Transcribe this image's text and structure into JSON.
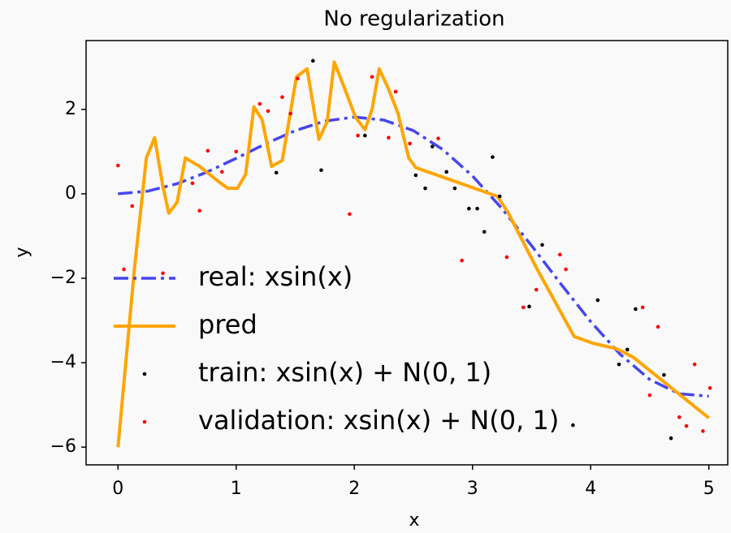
{
  "chart_data": {
    "type": "line",
    "title": "No regularization",
    "xlabel": "x",
    "ylabel": "y",
    "xlim": [
      -0.27,
      5.16
    ],
    "ylim": [
      -6.42,
      3.63
    ],
    "xticks": [
      0,
      1,
      2,
      3,
      4,
      5
    ],
    "yticks": [
      {
        "value": -6,
        "label": "−6"
      },
      {
        "value": -4,
        "label": "−4"
      },
      {
        "value": -2,
        "label": "−2"
      },
      0,
      2
    ],
    "grid": false,
    "legend": "lower left",
    "series": [
      {
        "name": "real: xsin(x)",
        "color": "#4545f0",
        "style": "dash-dot",
        "x": [
          0,
          0.25,
          0.5,
          0.75,
          1,
          1.25,
          1.5,
          1.75,
          2,
          2.25,
          2.5,
          2.75,
          3,
          3.25,
          3.5,
          3.75,
          4,
          4.25,
          4.5,
          4.75,
          5
        ],
        "values": [
          0,
          0.0619,
          0.2397,
          0.5112,
          0.8415,
          1.1862,
          1.4962,
          1.7219,
          1.8186,
          1.7474,
          1.4962,
          1.0459,
          0.4234,
          -0.3523,
          -1.2277,
          -2.1436,
          -3.0272,
          -3.8027,
          -4.3988,
          -4.7367,
          -4.7946
        ]
      },
      {
        "name": "pred",
        "color": "#ffa500",
        "style": "solid",
        "x": [
          0,
          0.14,
          0.24,
          0.31,
          0.38,
          0.43,
          0.5,
          0.57,
          0.69,
          0.86,
          0.93,
          1.01,
          1.08,
          1.15,
          1.22,
          1.3,
          1.39,
          1.51,
          1.6,
          1.7,
          1.77,
          1.83,
          1.92,
          2.01,
          2.09,
          2.15,
          2.21,
          2.29,
          2.37,
          2.46,
          2.52,
          3.21,
          3.3,
          3.54,
          3.86,
          4.02,
          4.22,
          4.36,
          5
        ],
        "values": [
          -6,
          -1.75,
          0.85,
          1.33,
          0.17,
          -0.46,
          -0.2,
          0.85,
          0.65,
          0.27,
          0.13,
          0.13,
          0.46,
          2.06,
          1.75,
          0.65,
          0.79,
          2.77,
          2.96,
          1.29,
          1.71,
          3.12,
          2.48,
          1.81,
          1.52,
          2.0,
          2.96,
          2.48,
          1.9,
          0.85,
          0.62,
          -0.06,
          -0.44,
          -1.75,
          -3.38,
          -3.54,
          -3.67,
          -3.87,
          -5.31
        ]
      },
      {
        "name": "train: xsin(x) + N(0, 1)",
        "color": "#000000",
        "style": "points",
        "x": [
          1.65,
          1.72,
          1.34,
          2.09,
          2.52,
          2.6,
          2.66,
          2.78,
          2.85,
          2.97,
          3.04,
          3.1,
          3.17,
          3.23,
          3.59,
          3.48,
          4.06,
          4.24,
          4.31,
          4.38,
          4.62,
          4.68,
          3.85
        ],
        "values": [
          3.15,
          0.56,
          0.5,
          1.38,
          0.44,
          0.13,
          1.12,
          0.52,
          0.13,
          -0.35,
          -0.35,
          -0.9,
          0.87,
          -0.06,
          -1.21,
          -2.67,
          -2.52,
          -4.04,
          -3.69,
          -2.73,
          -4.29,
          -5.79,
          -5.48
        ]
      },
      {
        "name": "validation: xsin(x) + N(0, 1)",
        "color": "#ff0000",
        "style": "points",
        "x": [
          0,
          0.05,
          0.12,
          0.38,
          0.63,
          0.69,
          0.76,
          0.88,
          1,
          1.2,
          1.27,
          1.39,
          1.46,
          1.52,
          1.96,
          2.03,
          2.15,
          2.29,
          2.35,
          2.47,
          2.71,
          2.91,
          3.29,
          3.43,
          3.54,
          3.74,
          3.79,
          4.44,
          4.5,
          4.57,
          4.75,
          4.81,
          4.88,
          4.95,
          5.01
        ],
        "values": [
          0.67,
          -1.79,
          -0.29,
          -1.88,
          0.25,
          -0.4,
          1.02,
          0.52,
          1.0,
          2.13,
          1.96,
          2.29,
          1.9,
          2.73,
          -0.48,
          1.38,
          2.77,
          1.33,
          2.42,
          1.19,
          1.31,
          -1.58,
          -1.5,
          -2.69,
          -2.27,
          -1.44,
          -1.79,
          -2.69,
          -4.77,
          -3.15,
          -5.29,
          -5.5,
          -4.04,
          -5.62,
          -4.6
        ]
      }
    ]
  }
}
